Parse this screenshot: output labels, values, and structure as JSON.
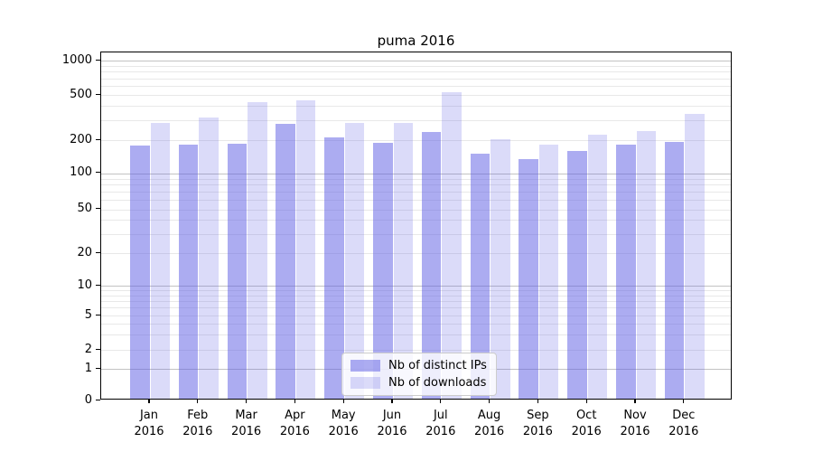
{
  "title": "puma 2016",
  "chart_data": {
    "type": "bar",
    "title": "puma 2016",
    "categories": [
      "Jan 2016",
      "Feb 2016",
      "Mar 2016",
      "Apr 2016",
      "May 2016",
      "Jun 2016",
      "Jul 2016",
      "Aug 2016",
      "Sep 2016",
      "Oct 2016",
      "Nov 2016",
      "Dec 2016"
    ],
    "months": [
      "Jan",
      "Feb",
      "Mar",
      "Apr",
      "May",
      "Jun",
      "Jul",
      "Aug",
      "Sep",
      "Oct",
      "Nov",
      "Dec"
    ],
    "year": "2016",
    "series": [
      {
        "name": "Nb of distinct IPs",
        "values": [
          177,
          181,
          184,
          280,
          212,
          188,
          236,
          150,
          135,
          158,
          182,
          193
        ]
      },
      {
        "name": "Nb of downloads",
        "values": [
          285,
          316,
          435,
          450,
          285,
          285,
          525,
          204,
          182,
          225,
          239,
          340
        ]
      }
    ],
    "yscale": "symlog",
    "y_ticks": [
      0,
      1,
      2,
      5,
      10,
      20,
      50,
      100,
      200,
      500,
      1000
    ],
    "ylim": [
      0,
      1150
    ],
    "xlabel": "",
    "ylabel": "",
    "grid": true,
    "legend_position": "lower center"
  },
  "colors": {
    "bar_distinct_ips": "rgba(90,90,227,0.5)",
    "bar_downloads": "rgba(90,90,227,0.22)",
    "grid_minor": "#e8e8e8",
    "grid_major": "#c2c2c2",
    "spine": "#000000",
    "background": "#ffffff",
    "legend_border": "#cccccc"
  }
}
